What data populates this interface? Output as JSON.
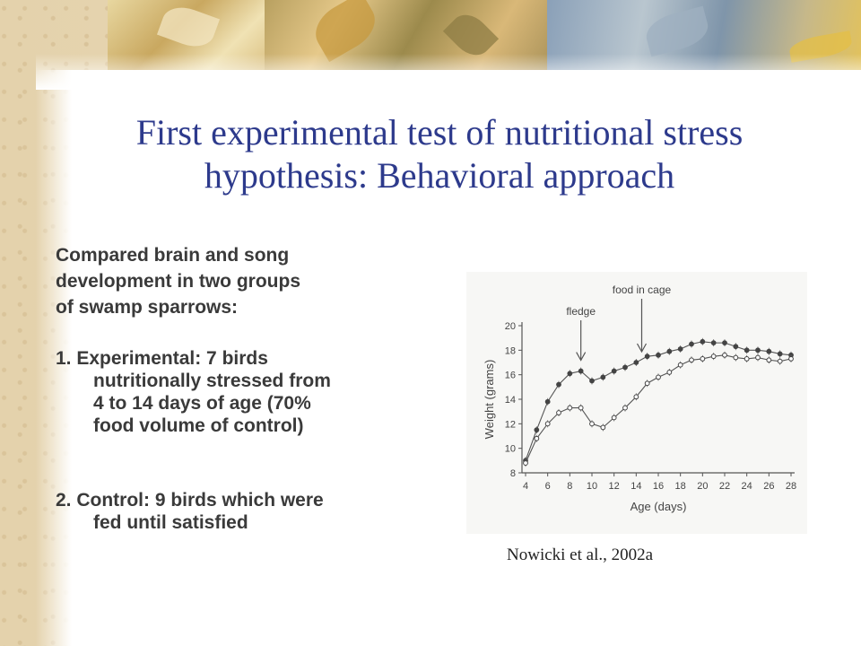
{
  "slide": {
    "title_line1": "First experimental test of nutritional stress",
    "title_line2": "hypothesis: Behavioral approach",
    "intro": [
      "Compared brain and song",
      "development in two groups",
      "of swamp sparrows:"
    ],
    "items": [
      {
        "number": "1.",
        "text": "Experimental: 7 birds nutritionally stressed from 4 to 14 days of age (70% food volume of control)",
        "lines": [
          "1. Experimental: 7 birds",
          "nutritionally stressed from",
          "4 to 14 days of age (70%",
          "food volume of control)"
        ]
      },
      {
        "number": "2.",
        "text": "Control: 9 birds which were fed until satisfied",
        "lines": [
          "2. Control: 9 birds which were",
          "fed until satisfied"
        ]
      }
    ],
    "caption": "Nowicki et al., 2002a"
  },
  "chart_data": {
    "type": "line",
    "title": "",
    "xlabel": "Age (days)",
    "ylabel": "Weight (grams)",
    "xlim": [
      4,
      28
    ],
    "ylim": [
      8,
      20
    ],
    "xticks": [
      4,
      6,
      8,
      10,
      12,
      14,
      16,
      18,
      20,
      22,
      24,
      26,
      28
    ],
    "yticks": [
      8,
      10,
      12,
      14,
      16,
      18,
      20
    ],
    "annotations": [
      {
        "label": "fledge",
        "x": 9
      },
      {
        "label": "food in cage",
        "x": 14.5
      }
    ],
    "series": [
      {
        "marker": "filled",
        "x": [
          4,
          5,
          6,
          7,
          8,
          9,
          10,
          11,
          12,
          13,
          14,
          15,
          16,
          17,
          18,
          19,
          20,
          21,
          22,
          23,
          24,
          25,
          26,
          27,
          28
        ],
        "values": [
          9.0,
          11.5,
          13.8,
          15.2,
          16.1,
          16.3,
          15.5,
          15.8,
          16.3,
          16.6,
          17.0,
          17.5,
          17.6,
          17.9,
          18.1,
          18.5,
          18.7,
          18.6,
          18.6,
          18.3,
          18.0,
          18.0,
          17.9,
          17.7,
          17.6
        ]
      },
      {
        "marker": "open",
        "x": [
          4,
          5,
          6,
          7,
          8,
          9,
          10,
          11,
          12,
          13,
          14,
          15,
          16,
          17,
          18,
          19,
          20,
          21,
          22,
          23,
          24,
          25,
          26,
          27,
          28
        ],
        "values": [
          8.8,
          10.8,
          12.0,
          12.9,
          13.3,
          13.3,
          12.0,
          11.7,
          12.5,
          13.3,
          14.2,
          15.3,
          15.8,
          16.2,
          16.8,
          17.2,
          17.3,
          17.5,
          17.6,
          17.4,
          17.3,
          17.4,
          17.2,
          17.1,
          17.3
        ]
      }
    ]
  }
}
